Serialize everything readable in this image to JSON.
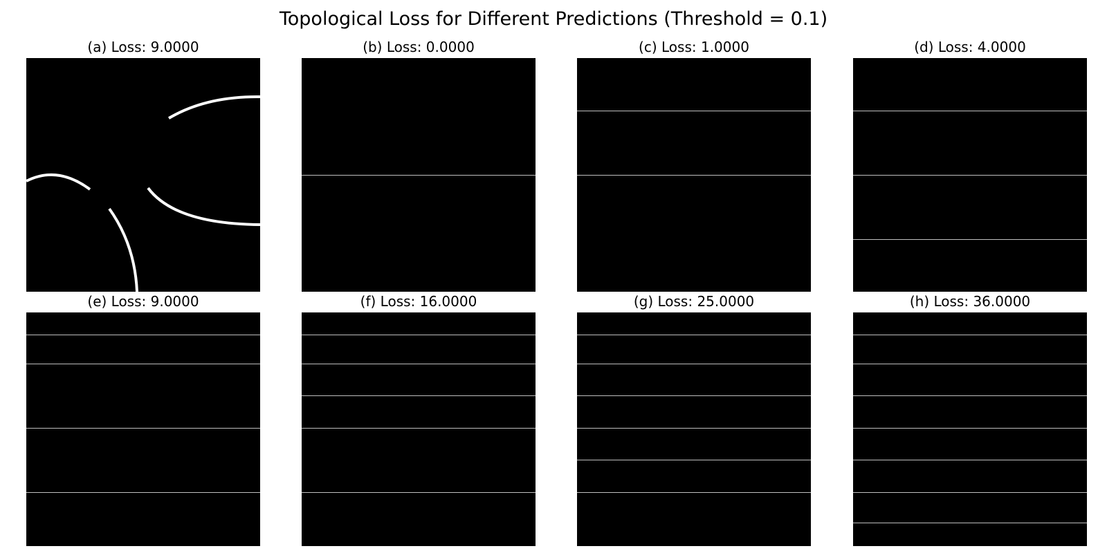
{
  "figure": {
    "title": "Topological Loss for Different Predictions (Threshold = 0.1)",
    "background_color": "#ffffff",
    "image_color": "#000000",
    "foreground_color": "#ffffff",
    "line_color": "#bfbfbf"
  },
  "panels": [
    {
      "title": "(a) Loss: 9.0000",
      "kind": "arcs",
      "line_fractions": []
    },
    {
      "title": "(b) Loss: 0.0000",
      "kind": "lines",
      "line_fractions": [
        0.5
      ]
    },
    {
      "title": "(c) Loss: 1.0000",
      "kind": "lines",
      "line_fractions": [
        0.225,
        0.5
      ]
    },
    {
      "title": "(d) Loss: 4.0000",
      "kind": "lines",
      "line_fractions": [
        0.225,
        0.5,
        0.775
      ]
    },
    {
      "title": "(e) Loss: 9.0000",
      "kind": "lines",
      "line_fractions": [
        0.095,
        0.22,
        0.495,
        0.77
      ]
    },
    {
      "title": "(f) Loss: 16.0000",
      "kind": "lines",
      "line_fractions": [
        0.095,
        0.22,
        0.355,
        0.495,
        0.77
      ]
    },
    {
      "title": "(g) Loss: 25.0000",
      "kind": "lines",
      "line_fractions": [
        0.095,
        0.22,
        0.355,
        0.495,
        0.63,
        0.77
      ]
    },
    {
      "title": "(h) Loss: 36.0000",
      "kind": "lines",
      "line_fractions": [
        0.095,
        0.22,
        0.355,
        0.495,
        0.63,
        0.77,
        0.9
      ]
    }
  ]
}
